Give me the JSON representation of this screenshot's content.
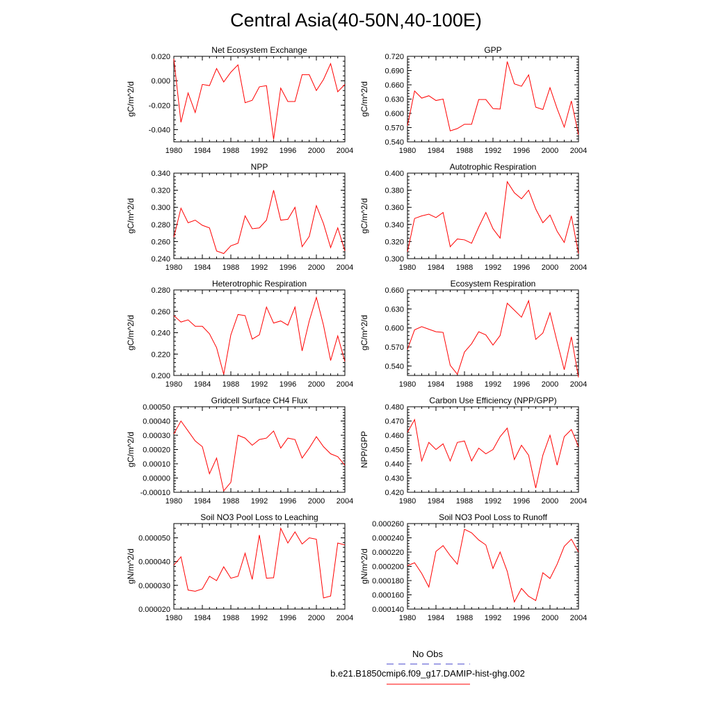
{
  "title": "Central Asia(40-50N,40-100E)",
  "legend": [
    {
      "label": "No Obs",
      "color": "#4444cc",
      "style": "dashed"
    },
    {
      "label": "b.e21.B1850cmip6.f09_g17.DAMIP-hist-ghg.002",
      "color": "#ff0000",
      "style": "solid"
    }
  ],
  "chart_data": [
    {
      "type": "line",
      "title": "Net Ecosystem Exchange",
      "ylabel": "gC/m^2/d",
      "xticks": [
        "1980",
        "1984",
        "1988",
        "1992",
        "1996",
        "2000",
        "2004"
      ],
      "xlim": [
        1980,
        2004
      ],
      "ylim": [
        -0.05,
        0.02
      ],
      "yticks": [
        -0.04,
        -0.02,
        0.0,
        0.02
      ],
      "yticklabels": [
        "-0.040",
        "-0.020",
        "0.000",
        "0.020"
      ],
      "series": [
        {
          "color": "#ff0000",
          "x": [
            1980,
            1981,
            1982,
            1983,
            1984,
            1985,
            1986,
            1987,
            1988,
            1989,
            1990,
            1991,
            1992,
            1993,
            1994,
            1995,
            1996,
            1997,
            1998,
            1999,
            2000,
            2001,
            2002,
            2003,
            2004
          ],
          "values": [
            0.018,
            -0.034,
            -0.01,
            -0.026,
            -0.003,
            -0.004,
            0.01,
            -0.001,
            0.007,
            0.013,
            -0.018,
            -0.016,
            -0.005,
            -0.004,
            -0.048,
            -0.006,
            -0.017,
            -0.017,
            0.005,
            0.005,
            -0.008,
            0.001,
            0.014,
            -0.009,
            -0.003
          ]
        }
      ]
    },
    {
      "type": "line",
      "title": "GPP",
      "ylabel": "gC/m^2/d",
      "xticks": [
        "1980",
        "1984",
        "1988",
        "1992",
        "1996",
        "2000",
        "2004"
      ],
      "xlim": [
        1980,
        2004
      ],
      "ylim": [
        0.54,
        0.72
      ],
      "yticks": [
        0.54,
        0.57,
        0.6,
        0.63,
        0.66,
        0.69,
        0.72
      ],
      "yticklabels": [
        "0.540",
        "0.570",
        "0.600",
        "0.630",
        "0.660",
        "0.690",
        "0.720"
      ],
      "series": [
        {
          "color": "#ff0000",
          "x": [
            1980,
            1981,
            1982,
            1983,
            1984,
            1985,
            1986,
            1987,
            1988,
            1989,
            1990,
            1991,
            1992,
            1993,
            1994,
            1995,
            1996,
            1997,
            1998,
            1999,
            2000,
            2001,
            2002,
            2003,
            2004
          ],
          "values": [
            0.574,
            0.647,
            0.632,
            0.637,
            0.627,
            0.63,
            0.563,
            0.568,
            0.577,
            0.577,
            0.629,
            0.629,
            0.61,
            0.609,
            0.709,
            0.662,
            0.657,
            0.681,
            0.613,
            0.608,
            0.654,
            0.61,
            0.571,
            0.626,
            0.555
          ]
        }
      ]
    },
    {
      "type": "line",
      "title": "NPP",
      "ylabel": "gC/m^2/d",
      "xticks": [
        "1980",
        "1984",
        "1988",
        "1992",
        "1996",
        "2000",
        "2004"
      ],
      "xlim": [
        1980,
        2004
      ],
      "ylim": [
        0.24,
        0.34
      ],
      "yticks": [
        0.24,
        0.26,
        0.28,
        0.3,
        0.32,
        0.34
      ],
      "yticklabels": [
        "0.240",
        "0.260",
        "0.280",
        "0.300",
        "0.320",
        "0.340"
      ],
      "series": [
        {
          "color": "#ff0000",
          "x": [
            1980,
            1981,
            1982,
            1983,
            1984,
            1985,
            1986,
            1987,
            1988,
            1989,
            1990,
            1991,
            1992,
            1993,
            1994,
            1995,
            1996,
            1997,
            1998,
            1999,
            2000,
            2001,
            2002,
            2003,
            2004
          ],
          "values": [
            0.265,
            0.299,
            0.282,
            0.285,
            0.279,
            0.276,
            0.249,
            0.246,
            0.255,
            0.258,
            0.29,
            0.275,
            0.276,
            0.285,
            0.32,
            0.285,
            0.286,
            0.3,
            0.254,
            0.266,
            0.302,
            0.281,
            0.253,
            0.276,
            0.249
          ]
        }
      ]
    },
    {
      "type": "line",
      "title": "Autotrophic Respiration",
      "ylabel": "gC/m^2/d",
      "xticks": [
        "1980",
        "1984",
        "1988",
        "1992",
        "1996",
        "2000",
        "2004"
      ],
      "xlim": [
        1980,
        2004
      ],
      "ylim": [
        0.3,
        0.4
      ],
      "yticks": [
        0.3,
        0.32,
        0.34,
        0.36,
        0.38,
        0.4
      ],
      "yticklabels": [
        "0.300",
        "0.320",
        "0.340",
        "0.360",
        "0.380",
        "0.400"
      ],
      "series": [
        {
          "color": "#ff0000",
          "x": [
            1980,
            1981,
            1982,
            1983,
            1984,
            1985,
            1986,
            1987,
            1988,
            1989,
            1990,
            1991,
            1992,
            1993,
            1994,
            1995,
            1996,
            1997,
            1998,
            1999,
            2000,
            2001,
            2002,
            2003,
            2004
          ],
          "values": [
            0.308,
            0.347,
            0.35,
            0.352,
            0.348,
            0.354,
            0.314,
            0.323,
            0.322,
            0.318,
            0.337,
            0.354,
            0.335,
            0.324,
            0.39,
            0.377,
            0.37,
            0.38,
            0.358,
            0.342,
            0.351,
            0.332,
            0.319,
            0.35,
            0.306
          ]
        }
      ]
    },
    {
      "type": "line",
      "title": "Heterotrophic Respiration",
      "ylabel": "gC/m^2/d",
      "xticks": [
        "1980",
        "1984",
        "1988",
        "1992",
        "1996",
        "2000",
        "2004"
      ],
      "xlim": [
        1980,
        2004
      ],
      "ylim": [
        0.2,
        0.28
      ],
      "yticks": [
        0.2,
        0.22,
        0.24,
        0.26,
        0.28
      ],
      "yticklabels": [
        "0.200",
        "0.220",
        "0.240",
        "0.260",
        "0.280"
      ],
      "series": [
        {
          "color": "#ff0000",
          "x": [
            1980,
            1981,
            1982,
            1983,
            1984,
            1985,
            1986,
            1987,
            1988,
            1989,
            1990,
            1991,
            1992,
            1993,
            1994,
            1995,
            1996,
            1997,
            1998,
            1999,
            2000,
            2001,
            2002,
            2003,
            2004
          ],
          "values": [
            0.256,
            0.25,
            0.252,
            0.246,
            0.246,
            0.239,
            0.226,
            0.201,
            0.238,
            0.257,
            0.256,
            0.234,
            0.238,
            0.264,
            0.249,
            0.251,
            0.247,
            0.264,
            0.223,
            0.251,
            0.273,
            0.247,
            0.214,
            0.237,
            0.213
          ]
        }
      ]
    },
    {
      "type": "line",
      "title": "Ecosystem Respiration",
      "ylabel": "gC/m^2/d",
      "xticks": [
        "1980",
        "1984",
        "1988",
        "1992",
        "1996",
        "2000",
        "2004"
      ],
      "xlim": [
        1980,
        2004
      ],
      "ylim": [
        0.525,
        0.66
      ],
      "yticks": [
        0.54,
        0.57,
        0.6,
        0.63,
        0.66
      ],
      "yticklabels": [
        "0.540",
        "0.570",
        "0.600",
        "0.630",
        "0.660"
      ],
      "series": [
        {
          "color": "#ff0000",
          "x": [
            1980,
            1981,
            1982,
            1983,
            1984,
            1985,
            1986,
            1987,
            1988,
            1989,
            1990,
            1991,
            1992,
            1993,
            1994,
            1995,
            1996,
            1997,
            1998,
            1999,
            2000,
            2001,
            2002,
            2003,
            2004
          ],
          "values": [
            0.566,
            0.597,
            0.602,
            0.598,
            0.594,
            0.593,
            0.541,
            0.527,
            0.562,
            0.575,
            0.594,
            0.589,
            0.573,
            0.588,
            0.639,
            0.628,
            0.617,
            0.643,
            0.582,
            0.592,
            0.624,
            0.578,
            0.534,
            0.586,
            0.522
          ]
        }
      ]
    },
    {
      "type": "line",
      "title": "Gridcell Surface CH4 Flux",
      "ylabel": "gC/m^2/d",
      "xticks": [
        "1980",
        "1984",
        "1988",
        "1992",
        "1996",
        "2000",
        "2004"
      ],
      "xlim": [
        1980,
        2004
      ],
      "ylim": [
        -0.0001,
        0.0005
      ],
      "yticks": [
        -0.0001,
        0.0,
        0.0001,
        0.0002,
        0.0003,
        0.0004,
        0.0005
      ],
      "yticklabels": [
        "-0.00010",
        "0.00000",
        "0.00010",
        "0.00020",
        "0.00030",
        "0.00040",
        "0.00050"
      ],
      "series": [
        {
          "color": "#ff0000",
          "x": [
            1980,
            1981,
            1982,
            1983,
            1984,
            1985,
            1986,
            1987,
            1988,
            1989,
            1990,
            1991,
            1992,
            1993,
            1994,
            1995,
            1996,
            1997,
            1998,
            1999,
            2000,
            2001,
            2002,
            2003,
            2004
          ],
          "values": [
            0.00031,
            0.0004,
            0.00033,
            0.00026,
            0.00022,
            3e-05,
            0.00014,
            -9e-05,
            -3e-05,
            0.0003,
            0.00028,
            0.00023,
            0.00027,
            0.00028,
            0.00033,
            0.00021,
            0.00028,
            0.00027,
            0.00014,
            0.00021,
            0.00029,
            0.00022,
            0.00017,
            0.00015,
            9e-05
          ]
        }
      ]
    },
    {
      "type": "line",
      "title": "Carbon Use Efficiency (NPP/GPP)",
      "ylabel": "NPP/GPP",
      "xticks": [
        "1980",
        "1984",
        "1988",
        "1992",
        "1996",
        "2000",
        "2004"
      ],
      "xlim": [
        1980,
        2004
      ],
      "ylim": [
        0.42,
        0.48
      ],
      "yticks": [
        0.42,
        0.43,
        0.44,
        0.45,
        0.46,
        0.47,
        0.48
      ],
      "yticklabels": [
        "0.420",
        "0.430",
        "0.440",
        "0.450",
        "0.460",
        "0.470",
        "0.480"
      ],
      "series": [
        {
          "color": "#ff0000",
          "x": [
            1980,
            1981,
            1982,
            1983,
            1984,
            1985,
            1986,
            1987,
            1988,
            1989,
            1990,
            1991,
            1992,
            1993,
            1994,
            1995,
            1996,
            1997,
            1998,
            1999,
            2000,
            2001,
            2002,
            2003,
            2004
          ],
          "values": [
            0.462,
            0.471,
            0.442,
            0.455,
            0.45,
            0.454,
            0.442,
            0.455,
            0.456,
            0.442,
            0.451,
            0.447,
            0.45,
            0.459,
            0.465,
            0.443,
            0.453,
            0.446,
            0.423,
            0.446,
            0.46,
            0.439,
            0.459,
            0.464,
            0.452
          ]
        }
      ]
    },
    {
      "type": "line",
      "title": "Soil NO3 Pool Loss to Leaching",
      "ylabel": "gN/m^2/d",
      "xticks": [
        "1980",
        "1984",
        "1988",
        "1992",
        "1996",
        "2000",
        "2004"
      ],
      "xlim": [
        1980,
        2004
      ],
      "ylim": [
        2e-05,
        5.6e-05
      ],
      "yticks": [
        2e-05,
        3e-05,
        4e-05,
        5e-05
      ],
      "yticklabels": [
        "0.000020",
        "0.000030",
        "0.000040",
        "0.000050"
      ],
      "series": [
        {
          "color": "#ff0000",
          "x": [
            1980,
            1981,
            1982,
            1983,
            1984,
            1985,
            1986,
            1987,
            1988,
            1989,
            1990,
            1991,
            1992,
            1993,
            1994,
            1995,
            1996,
            1997,
            1998,
            1999,
            2000,
            2001,
            2002,
            2003,
            2004
          ],
          "values": [
            3.85e-05,
            4.2e-05,
            2.8e-05,
            2.75e-05,
            2.85e-05,
            3.38e-05,
            3.2e-05,
            3.78e-05,
            3.3e-05,
            3.38e-05,
            4.35e-05,
            3.25e-05,
            5.12e-05,
            3.3e-05,
            3.32e-05,
            5.4e-05,
            4.78e-05,
            5.25e-05,
            4.74e-05,
            5e-05,
            4.94e-05,
            2.47e-05,
            2.55e-05,
            4.78e-05,
            4.7e-05
          ]
        }
      ]
    },
    {
      "type": "line",
      "title": "Soil NO3 Pool Loss to Runoff",
      "ylabel": "gN/m^2/d",
      "xticks": [
        "1980",
        "1984",
        "1988",
        "1992",
        "1996",
        "2000",
        "2004"
      ],
      "xlim": [
        1980,
        2004
      ],
      "ylim": [
        0.00014,
        0.00026
      ],
      "yticks": [
        0.00014,
        0.00016,
        0.00018,
        0.0002,
        0.00022,
        0.00024,
        0.00026
      ],
      "yticklabels": [
        "0.000140",
        "0.000160",
        "0.000180",
        "0.000200",
        "0.000220",
        "0.000240",
        "0.000260"
      ],
      "series": [
        {
          "color": "#ff0000",
          "x": [
            1980,
            1981,
            1982,
            1983,
            1984,
            1985,
            1986,
            1987,
            1988,
            1989,
            1990,
            1991,
            1992,
            1993,
            1994,
            1995,
            1996,
            1997,
            1998,
            1999,
            2000,
            2001,
            2002,
            2003,
            2004
          ],
          "values": [
            0.000201,
            0.000205,
            0.00019,
            0.000171,
            0.000221,
            0.000229,
            0.000215,
            0.000203,
            0.000252,
            0.000247,
            0.000237,
            0.00023,
            0.000197,
            0.00022,
            0.000193,
            0.00015,
            0.000169,
            0.000158,
            0.000152,
            0.000191,
            0.000183,
            0.000203,
            0.000228,
            0.000238,
            0.00022
          ]
        }
      ]
    }
  ]
}
